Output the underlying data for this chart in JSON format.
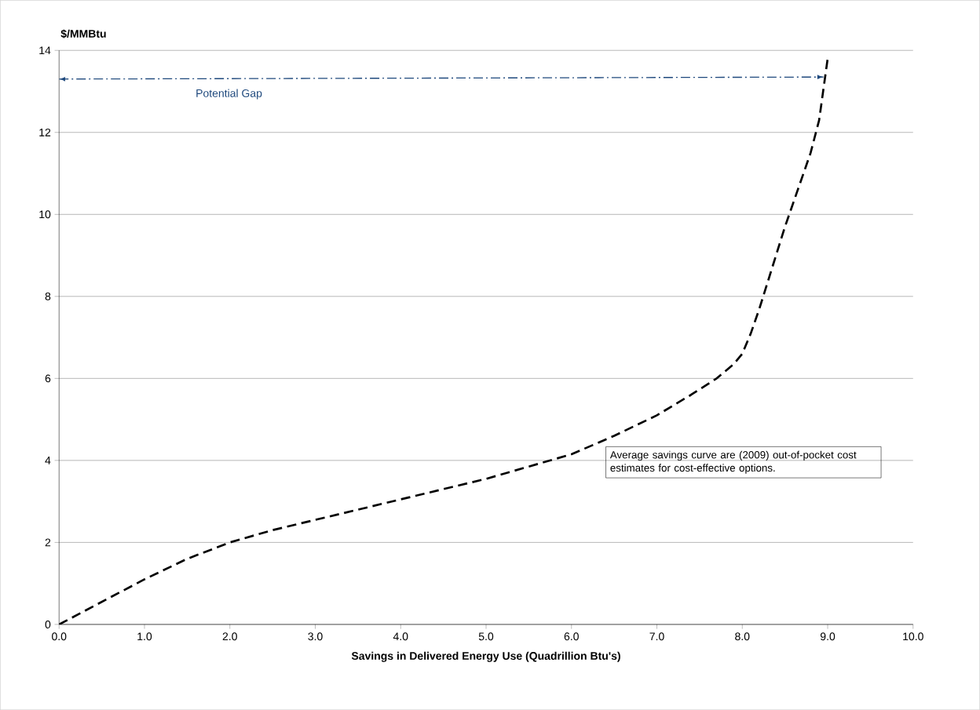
{
  "chart_data": {
    "type": "line",
    "xlabel": "Savings in Delivered Energy Use (Quadrillion Btu's)",
    "ylabel": "$/MMBtu",
    "xlim": [
      0,
      10
    ],
    "ylim": [
      0,
      14
    ],
    "xticks": [
      {
        "value": 0,
        "label": "0.0"
      },
      {
        "value": 1,
        "label": "1.0"
      },
      {
        "value": 2,
        "label": "2.0"
      },
      {
        "value": 3,
        "label": "3.0"
      },
      {
        "value": 4,
        "label": "4.0"
      },
      {
        "value": 5,
        "label": "5.0"
      },
      {
        "value": 6,
        "label": "6.0"
      },
      {
        "value": 7,
        "label": "7.0"
      },
      {
        "value": 8,
        "label": "8.0"
      },
      {
        "value": 9,
        "label": "9.0"
      },
      {
        "value": 10,
        "label": "10.0"
      }
    ],
    "yticks": [
      0,
      2,
      4,
      6,
      8,
      10,
      12,
      14
    ],
    "grid": "y",
    "series": [
      {
        "color": "#000000",
        "line_style": "dashed",
        "x": [
          0,
          0.5,
          1,
          1.5,
          2,
          2.5,
          3,
          3.5,
          4,
          4.5,
          5,
          5.5,
          6,
          6.5,
          7,
          7.4,
          7.7,
          7.9,
          8.0,
          8.1,
          8.2,
          8.35,
          8.5,
          8.65,
          8.8,
          8.9,
          9.0
        ],
        "values": [
          0,
          0.55,
          1.1,
          1.6,
          2.0,
          2.3,
          2.55,
          2.8,
          3.05,
          3.3,
          3.55,
          3.85,
          4.15,
          4.6,
          5.1,
          5.6,
          6.0,
          6.35,
          6.6,
          7.1,
          7.7,
          8.7,
          9.7,
          10.6,
          11.5,
          12.3,
          13.8
        ]
      },
      {
        "name": "Potential Gap",
        "color": "#1f497d",
        "line_style": "dotted",
        "marker": "triangle",
        "x": [
          0,
          8.95
        ],
        "values": [
          13.3,
          13.35
        ]
      }
    ],
    "annotations": [
      "Average savings curve are (2009) out-of-pocket cost estimates for cost-effective options."
    ]
  }
}
